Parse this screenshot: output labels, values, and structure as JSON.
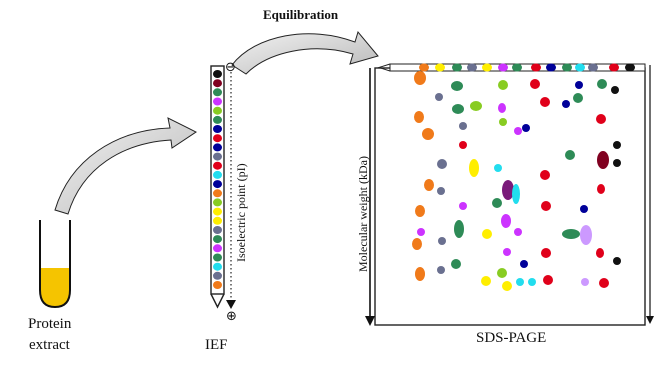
{
  "diagram": {
    "labels": {
      "equilibration": "Equilibration",
      "protein_extract_line1": "Protein",
      "protein_extract_line2": "extract",
      "ief": "IEF",
      "sds_page": "SDS-PAGE",
      "pi_axis": "Isoelectric point (pI)",
      "mw_axis": "Molecular weight (kDa)"
    },
    "symbols": {
      "minus": "⊖",
      "plus": "⊕"
    },
    "colors": {
      "protein": "#f5c400",
      "arrow_fill": "#d2d2d2",
      "orange": "#f07a1a",
      "seagreen": "#2e8b57",
      "yellow": "#ffee00",
      "red": "#e0001a",
      "violet": "#cc33ff",
      "navy": "#000099",
      "slate": "#6a7090",
      "green": "#88cc22",
      "cyan": "#22ddee",
      "lavender": "#cc99ff",
      "maroon": "#800020",
      "black": "#111111",
      "lilac": "#cc88ee",
      "purple": "#7a1a7a"
    },
    "strip_bands": [
      "black",
      "maroon",
      "seagreen",
      "violet",
      "green",
      "seagreen",
      "navy",
      "red",
      "navy",
      "slate",
      "red",
      "cyan",
      "navy",
      "orange",
      "green",
      "yellow",
      "yellow",
      "slate",
      "seagreen",
      "violet",
      "seagreen",
      "cyan",
      "slate",
      "orange"
    ],
    "top_bands": [
      "orange",
      "yellow",
      "seagreen",
      "slate",
      "yellow",
      "violet",
      "seagreen",
      "red",
      "navy",
      "seagreen",
      "cyan",
      "slate",
      "red",
      "black"
    ]
  }
}
